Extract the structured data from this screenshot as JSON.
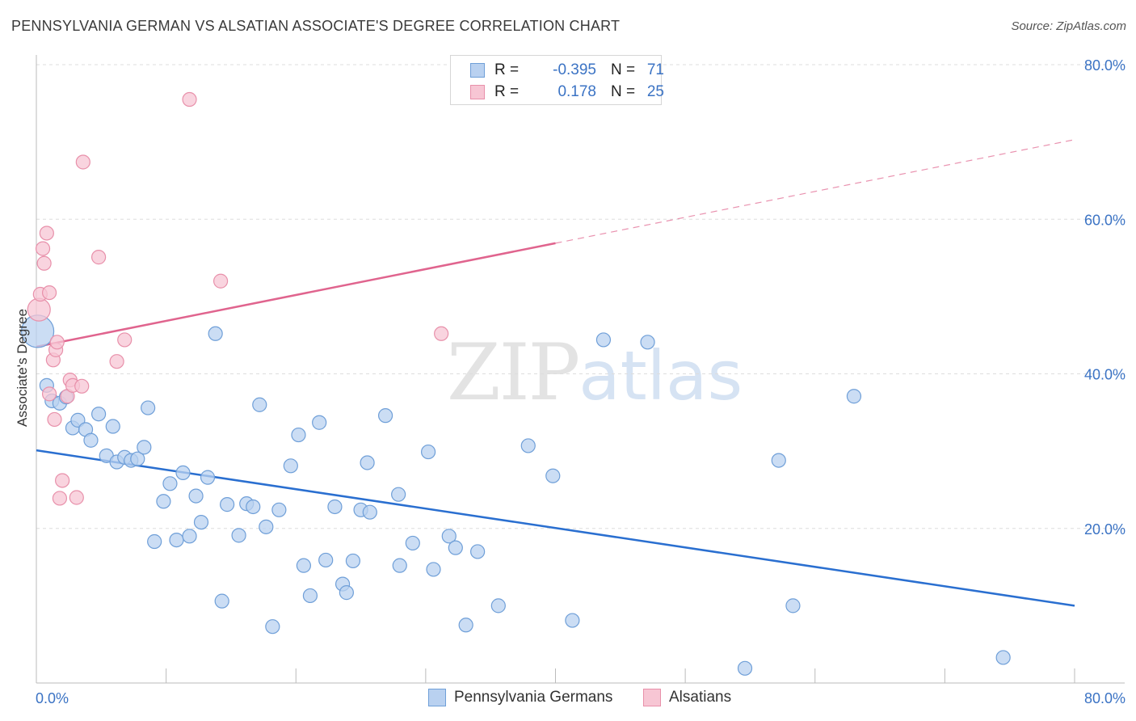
{
  "title": "PENNSYLVANIA GERMAN VS ALSATIAN ASSOCIATE'S DEGREE CORRELATION CHART",
  "source": "Source: ZipAtlas.com",
  "watermark": {
    "zip": "ZIP",
    "atlas": "atlas"
  },
  "colors": {
    "blue": "#6f9fd8",
    "blue_fill": "#b9d1f0",
    "blue_line": "#2a6fd0",
    "pink": "#e890aa",
    "pink_fill": "#f7c6d4",
    "pink_line": "#e0648e",
    "tick_text": "#3b73c4"
  },
  "legend": {
    "rows": [
      {
        "r_label": "R =",
        "r_value": "-0.395",
        "n_label": "N =",
        "n_value": "71"
      },
      {
        "r_label": "R =",
        "r_value": "0.178",
        "n_label": "N =",
        "n_value": "25"
      }
    ]
  },
  "bottom_legend": [
    "Pennsylvania Germans",
    "Alsatians"
  ],
  "chart_data": {
    "type": "scatter",
    "title": "PENNSYLVANIA GERMAN VS ALSATIAN ASSOCIATE'S DEGREE CORRELATION CHART",
    "xlabel": "",
    "ylabel": "Associate's Degree",
    "xlim": [
      0,
      80
    ],
    "ylim": [
      0,
      80
    ],
    "x_tick_labels": [
      "0.0%",
      "80.0%"
    ],
    "y_tick_labels": [
      "20.0%",
      "40.0%",
      "60.0%",
      "80.0%"
    ],
    "y_ticks": [
      20,
      40,
      60,
      80
    ],
    "grid": true,
    "series": [
      {
        "name": "Pennsylvania Germans",
        "R": -0.395,
        "N": 71,
        "trend": {
          "x": [
            0,
            80
          ],
          "y": [
            30.1,
            10.0
          ],
          "dashed_after": null
        },
        "points": [
          [
            0.1,
            45.5
          ],
          [
            0.8,
            38.5
          ],
          [
            1.2,
            36.5
          ],
          [
            1.8,
            36.2
          ],
          [
            2.3,
            37.0
          ],
          [
            2.8,
            33.0
          ],
          [
            3.2,
            34.0
          ],
          [
            3.8,
            32.8
          ],
          [
            4.2,
            31.4
          ],
          [
            4.8,
            34.8
          ],
          [
            5.4,
            29.4
          ],
          [
            5.9,
            33.2
          ],
          [
            6.2,
            28.6
          ],
          [
            6.8,
            29.2
          ],
          [
            7.3,
            28.8
          ],
          [
            7.8,
            29.0
          ],
          [
            8.3,
            30.5
          ],
          [
            8.6,
            35.6
          ],
          [
            9.1,
            18.3
          ],
          [
            9.8,
            23.5
          ],
          [
            10.3,
            25.8
          ],
          [
            10.8,
            18.5
          ],
          [
            11.3,
            27.2
          ],
          [
            11.8,
            19.0
          ],
          [
            12.3,
            24.2
          ],
          [
            12.7,
            20.8
          ],
          [
            13.2,
            26.6
          ],
          [
            13.8,
            45.2
          ],
          [
            14.3,
            10.6
          ],
          [
            14.7,
            23.1
          ],
          [
            15.6,
            19.1
          ],
          [
            16.2,
            23.2
          ],
          [
            16.7,
            22.8
          ],
          [
            17.2,
            36.0
          ],
          [
            17.7,
            20.2
          ],
          [
            18.2,
            7.3
          ],
          [
            18.7,
            22.4
          ],
          [
            19.6,
            28.1
          ],
          [
            20.2,
            32.1
          ],
          [
            20.6,
            15.2
          ],
          [
            21.1,
            11.3
          ],
          [
            21.8,
            33.7
          ],
          [
            22.3,
            15.9
          ],
          [
            23.0,
            22.8
          ],
          [
            23.6,
            12.8
          ],
          [
            23.9,
            11.7
          ],
          [
            24.4,
            15.8
          ],
          [
            25.0,
            22.4
          ],
          [
            25.5,
            28.5
          ],
          [
            25.7,
            22.1
          ],
          [
            26.9,
            34.6
          ],
          [
            27.9,
            24.4
          ],
          [
            28.0,
            15.2
          ],
          [
            29.0,
            18.1
          ],
          [
            30.2,
            29.9
          ],
          [
            30.6,
            14.7
          ],
          [
            31.8,
            19.0
          ],
          [
            32.3,
            17.5
          ],
          [
            33.1,
            7.5
          ],
          [
            34.0,
            17.0
          ],
          [
            35.6,
            10.0
          ],
          [
            37.9,
            30.7
          ],
          [
            39.8,
            26.8
          ],
          [
            41.3,
            8.1
          ],
          [
            43.7,
            44.4
          ],
          [
            47.1,
            44.1
          ],
          [
            54.6,
            1.9
          ],
          [
            57.2,
            28.8
          ],
          [
            58.3,
            10.0
          ],
          [
            63.0,
            37.1
          ],
          [
            74.5,
            3.3
          ]
        ]
      },
      {
        "name": "Alsatians",
        "R": 0.178,
        "N": 25,
        "trend": {
          "x": [
            0,
            80
          ],
          "y": [
            43.5,
            70.3
          ],
          "solid_until": 40
        },
        "points": [
          [
            0.2,
            48.3
          ],
          [
            0.3,
            50.3
          ],
          [
            0.5,
            56.2
          ],
          [
            0.6,
            54.3
          ],
          [
            0.8,
            58.2
          ],
          [
            1.0,
            50.5
          ],
          [
            1.0,
            37.4
          ],
          [
            1.3,
            41.8
          ],
          [
            1.4,
            34.1
          ],
          [
            1.5,
            43.1
          ],
          [
            1.6,
            44.1
          ],
          [
            1.8,
            23.9
          ],
          [
            2.0,
            26.2
          ],
          [
            2.4,
            37.1
          ],
          [
            2.6,
            39.2
          ],
          [
            2.8,
            38.5
          ],
          [
            3.1,
            24.0
          ],
          [
            3.5,
            38.4
          ],
          [
            3.6,
            67.4
          ],
          [
            4.8,
            55.1
          ],
          [
            6.2,
            41.6
          ],
          [
            6.8,
            44.4
          ],
          [
            11.8,
            75.5
          ],
          [
            14.2,
            52.0
          ],
          [
            31.2,
            45.2
          ]
        ]
      }
    ]
  }
}
